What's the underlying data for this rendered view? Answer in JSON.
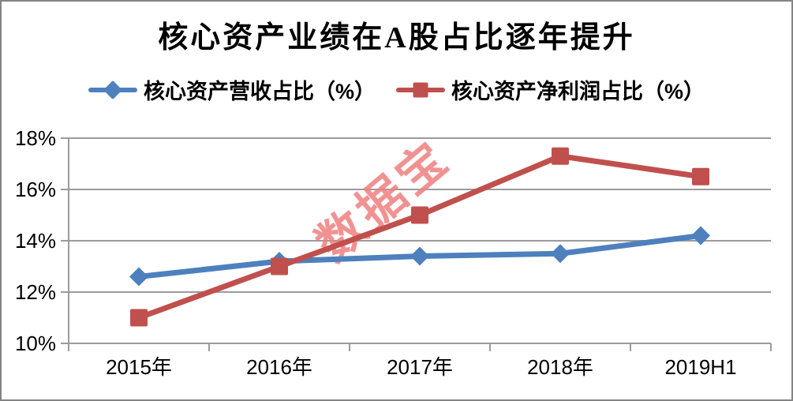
{
  "colors": {
    "revenue_series": "#4d80bd",
    "profit_series": "#c0504d",
    "gridline": "#9b9b9b",
    "axis": "#9b9b9b",
    "watermark": "#ee7f7f",
    "frame_border": "#848484",
    "text": "#000000"
  },
  "chart_data": {
    "type": "line",
    "title": "核心资产业绩在A股占比逐年提升",
    "categories": [
      "2015年",
      "2016年",
      "2017年",
      "2018年",
      "2019H1"
    ],
    "series": [
      {
        "name": "核心资产营收占比（%）",
        "marker": "diamond",
        "color": "#4d80bd",
        "values": [
          12.6,
          13.2,
          13.4,
          13.5,
          14.2
        ]
      },
      {
        "name": "核心资产净利润占比（%）",
        "marker": "square",
        "color": "#c0504d",
        "values": [
          11.0,
          13.0,
          15.0,
          17.3,
          16.5
        ]
      }
    ],
    "xlabel": "",
    "ylabel": "",
    "ylim": [
      10,
      18
    ],
    "ytick_step": 2,
    "ytick_labels": [
      "10%",
      "12%",
      "14%",
      "16%",
      "18%"
    ],
    "grid": true,
    "legend_position": "top",
    "watermark": "数据宝"
  }
}
